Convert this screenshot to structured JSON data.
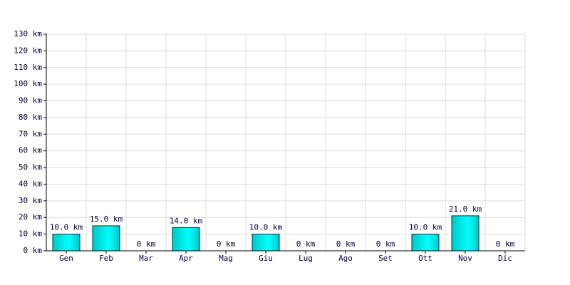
{
  "chart_data": {
    "type": "bar",
    "categories": [
      "Gen",
      "Feb",
      "Mar",
      "Apr",
      "Mag",
      "Giu",
      "Lug",
      "Ago",
      "Set",
      "Ott",
      "Nov",
      "Dic"
    ],
    "values": [
      10,
      15,
      0,
      14,
      0,
      10,
      0,
      0,
      0,
      10,
      21,
      0
    ],
    "value_labels": [
      "10.0 km",
      "15.0 km",
      "0 km",
      "14.0 km",
      "0 km",
      "10.0 km",
      "0 km",
      "0 km",
      "0 km",
      "10.0 km",
      "21.0 km",
      "0 km"
    ],
    "color": "#00c8c8",
    "ylim": [
      0,
      130
    ],
    "yticks": [
      {
        "value": 0,
        "label": "0 km"
      },
      {
        "value": 10,
        "label": "10 km"
      },
      {
        "value": 20,
        "label": "20 km"
      },
      {
        "value": 30,
        "label": "30 km"
      },
      {
        "value": 40,
        "label": "40 km"
      },
      {
        "value": 50,
        "label": "50 km"
      },
      {
        "value": 60,
        "label": "60 km"
      },
      {
        "value": 70,
        "label": "70 km"
      },
      {
        "value": 80,
        "label": "80 km"
      },
      {
        "value": 90,
        "label": "90 km"
      },
      {
        "value": 100,
        "label": "100 km"
      },
      {
        "value": 110,
        "label": "110 km"
      },
      {
        "value": 120,
        "label": "120 km"
      },
      {
        "value": 130,
        "label": "130 km"
      }
    ],
    "grid": true
  }
}
